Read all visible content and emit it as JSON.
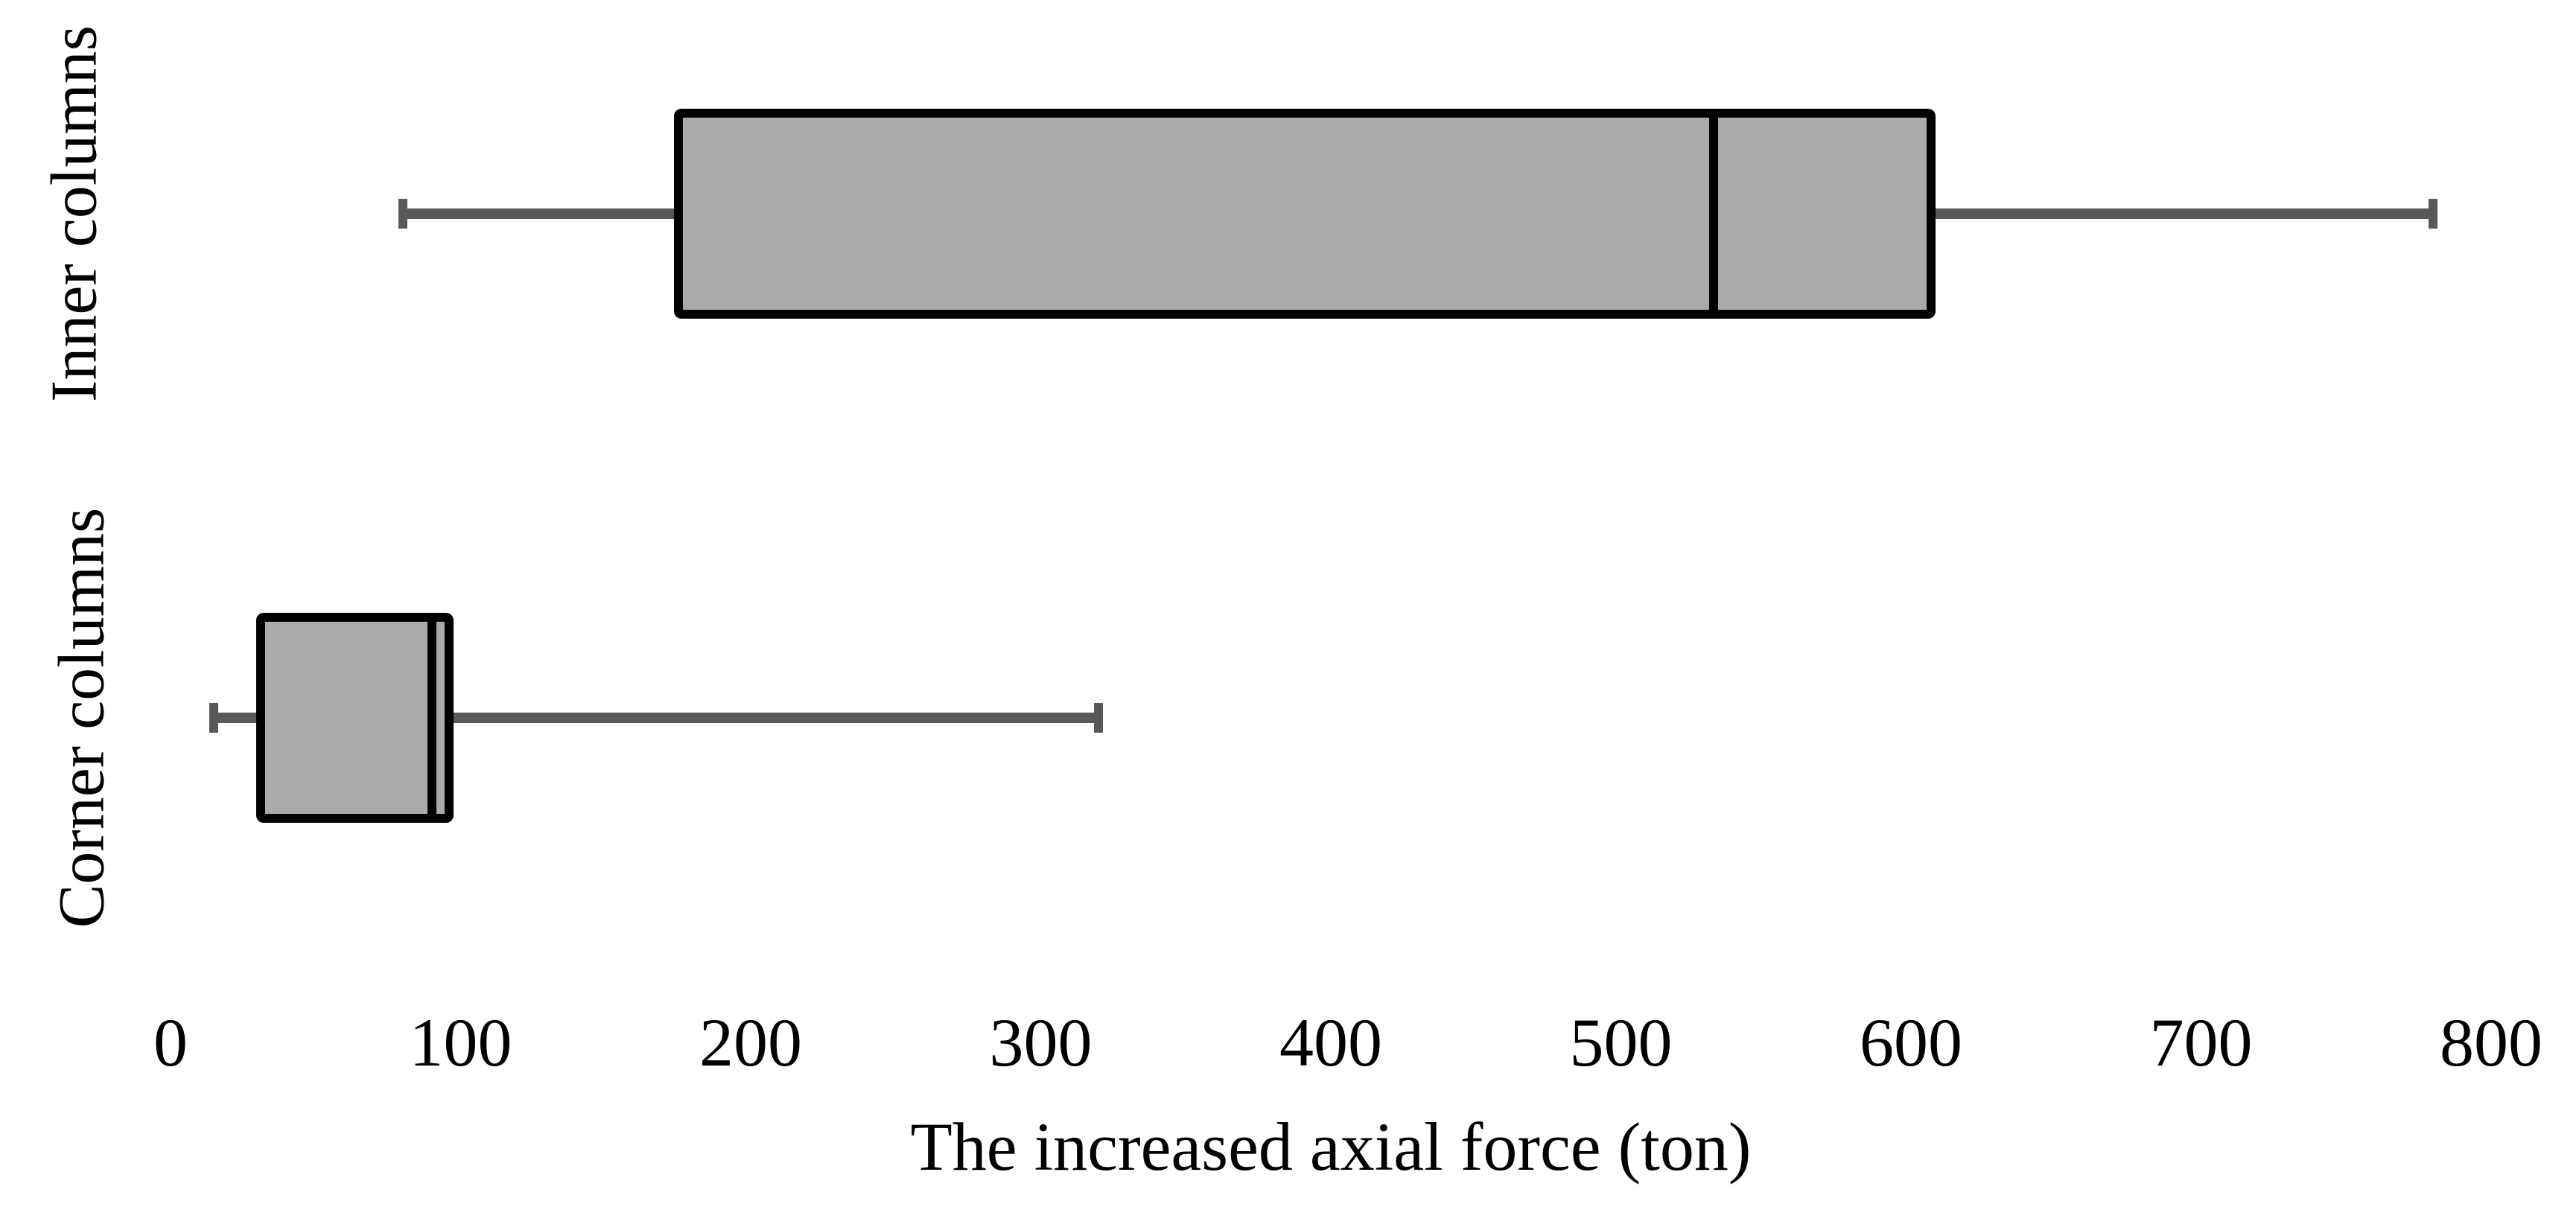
{
  "chart_data": {
    "type": "boxplot",
    "orientation": "horizontal",
    "title": "",
    "xlabel": "The increased axial force (ton)",
    "ylabel": "",
    "xlim": [
      0,
      800
    ],
    "x_ticks": [
      0,
      100,
      200,
      300,
      400,
      500,
      600,
      700,
      800
    ],
    "grid": false,
    "legend": false,
    "axis_lines": false,
    "categories": [
      "Inner columns",
      "Corner columns"
    ],
    "series": [
      {
        "name": "Inner columns",
        "whisker_min": 80,
        "q1": 175,
        "median": 532,
        "q3": 607,
        "whisker_max": 780
      },
      {
        "name": "Corner columns",
        "whisker_min": 15,
        "q1": 31,
        "median": 90,
        "q3": 96,
        "whisker_max": 320
      }
    ],
    "colors": {
      "box_fill": "#ACA9A9",
      "box_border": "#000000",
      "median_line": "#000000",
      "whisker": "#595959",
      "text": "#000000",
      "background": "#FFFFFF"
    }
  }
}
